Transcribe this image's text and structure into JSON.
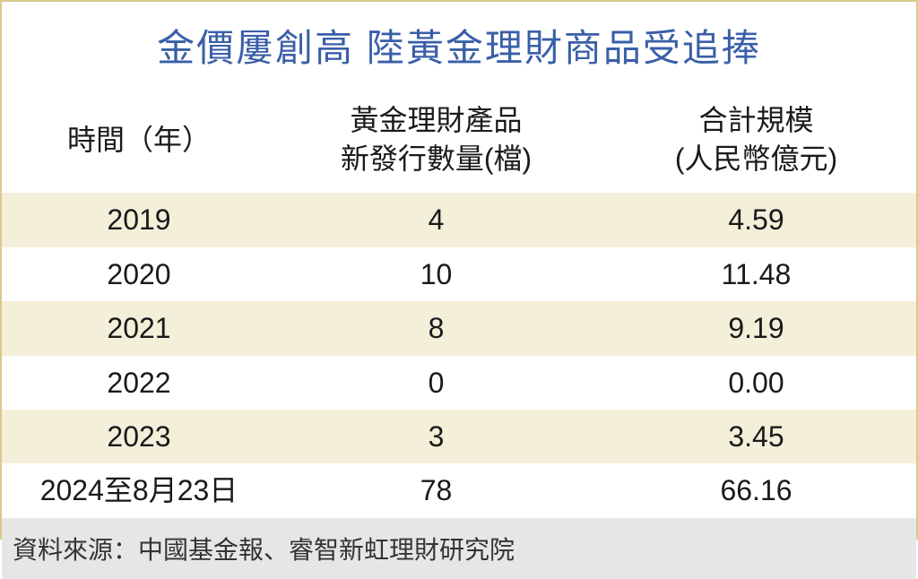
{
  "title": "金價屢創高 陸黃金理財商品受追捧",
  "title_color": "#3a5fa8",
  "title_fontsize": 42,
  "gold_bar_gradient_top": "#e8cf6a",
  "gold_bar_gradient_mid": "#f5e9b5",
  "border_color": "#d9c98a",
  "table": {
    "columns": [
      {
        "label": "時間（年）",
        "align": "center"
      },
      {
        "label_line1": "黃金理財產品",
        "label_line2": "新發行數量(檔)",
        "align": "center"
      },
      {
        "label_line1": "合計規模",
        "label_line2": "(人民幣億元)",
        "align": "center"
      }
    ],
    "rows": [
      {
        "time": "2019",
        "count": "4",
        "scale": "4.59",
        "stripe": true
      },
      {
        "time": "2020",
        "count": "10",
        "scale": "11.48",
        "stripe": false
      },
      {
        "time": "2021",
        "count": "8",
        "scale": "9.19",
        "stripe": true
      },
      {
        "time": "2022",
        "count": "0",
        "scale": "0.00",
        "stripe": false
      },
      {
        "time": "2023",
        "count": "3",
        "scale": "3.45",
        "stripe": true
      },
      {
        "time": "2024至8月23日",
        "count": "78",
        "scale": "66.16",
        "stripe": false
      }
    ],
    "header_fontsize": 32,
    "cell_fontsize": 32,
    "stripe_color": "#f4efd9",
    "text_color": "#1a1a1a"
  },
  "source": "資料來源：中國基金報、睿智新虹理財研究院",
  "source_bg": "#e6e6e6",
  "source_fontsize": 28
}
